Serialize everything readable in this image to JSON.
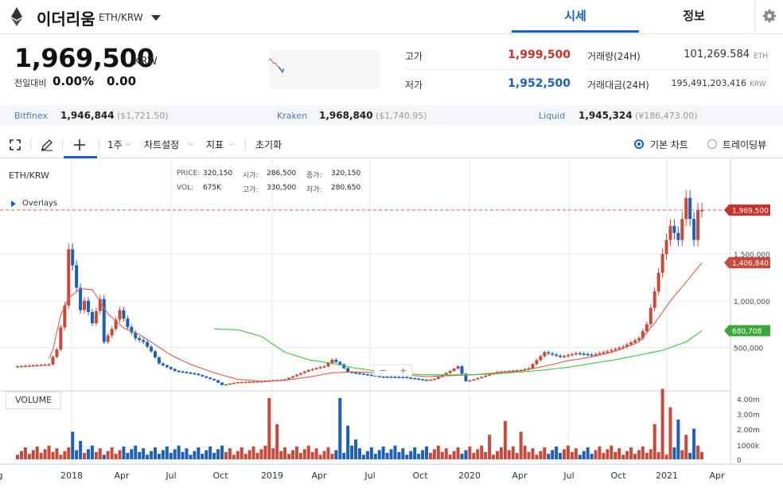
{
  "header": {
    "coin_name": "이더리움",
    "pair": "ETH/KRW",
    "tabs": [
      {
        "label": "시세"
      },
      {
        "label": "정보"
      }
    ]
  },
  "summary": {
    "price": "1,969,500",
    "unit": "KRW",
    "change_label": "전일대비",
    "change_pct": "0.00%",
    "change_amt": "0.00",
    "high_label": "고가",
    "high": "1,999,500",
    "low_label": "저가",
    "low": "1,952,500",
    "volume_label": "거래량(24H)",
    "volume": "101,269.584",
    "volume_unit": "ETH",
    "amount_label": "거래대금(24H)",
    "amount": "195,491,203,416",
    "amount_unit": "KRW"
  },
  "exchanges": [
    {
      "name": "Bitfinex",
      "price": "1,946,844",
      "sub": "($1,721.50)"
    },
    {
      "name": "Kraken",
      "price": "1,968,840",
      "sub": "($1,740.95)"
    },
    {
      "name": "Liquid",
      "price": "1,945,324",
      "sub": "(¥186,473.00)"
    }
  ],
  "toolbar": {
    "interval": "1주",
    "settings": "차트설정",
    "indicators": "지표",
    "reset": "초기화",
    "view_basic": "기본 차트",
    "view_tv": "트레이딩뷰"
  },
  "chart_info": {
    "symbol": "ETH/KRW",
    "overlays": "Overlays",
    "price_label": "PRICE:",
    "price": "320,150",
    "open_label": "시가:",
    "open": "286,500",
    "close_label": "종가:",
    "close": "320,150",
    "vol_label": "VOL:",
    "vol": "675K",
    "high_label": "고가:",
    "high": "330,500",
    "low_label": "저가:",
    "low": "280,650",
    "volume_title": "VOLUME"
  },
  "colors": {
    "up": "#c84a3d",
    "down": "#1e5fb8",
    "ma_short": "#e05a4a",
    "ma_long": "#3ec23e",
    "accent": "#1261c4"
  },
  "chart_data": {
    "type": "candlestick",
    "interval": "weekly",
    "price_ticks": [
      500000,
      1000000,
      1500000
    ],
    "price_tick_labels": [
      "500,000",
      "1,000,000",
      "1,500,000"
    ],
    "volume_ticks": [
      "0",
      "1000k",
      "2.00m",
      "3.00m",
      "4.00m"
    ],
    "x_labels": [
      "g",
      "2018",
      "Apr",
      "Jul",
      "Oct",
      "2019",
      "Apr",
      "Jul",
      "Oct",
      "2020",
      "Apr",
      "Jul",
      "Oct",
      "2021",
      "Apr"
    ],
    "badges": [
      {
        "label": "1,969,500",
        "value": 1969500,
        "series": "price"
      },
      {
        "label": "1,406,840",
        "value": 1406840,
        "series": "ma_short"
      },
      {
        "label": "680,708",
        "value": 680708,
        "series": "ma_long"
      }
    ],
    "close_line": 1969500,
    "price_anchors": [
      [
        0,
        300000
      ],
      [
        8,
        320000
      ],
      [
        10,
        480000
      ],
      [
        12,
        950000
      ],
      [
        13,
        1550000
      ],
      [
        14,
        1380000
      ],
      [
        16,
        900000
      ],
      [
        17,
        1000000
      ],
      [
        19,
        760000
      ],
      [
        21,
        1020000
      ],
      [
        22,
        560000
      ],
      [
        24,
        700000
      ],
      [
        26,
        900000
      ],
      [
        28,
        720000
      ],
      [
        30,
        600000
      ],
      [
        32,
        560000
      ],
      [
        34,
        460000
      ],
      [
        36,
        330000
      ],
      [
        40,
        250000
      ],
      [
        45,
        220000
      ],
      [
        50,
        150000
      ],
      [
        52,
        100000
      ],
      [
        56,
        130000
      ],
      [
        62,
        140000
      ],
      [
        68,
        160000
      ],
      [
        74,
        260000
      ],
      [
        78,
        300000
      ],
      [
        80,
        370000
      ],
      [
        82,
        320000
      ],
      [
        84,
        240000
      ],
      [
        92,
        190000
      ],
      [
        98,
        185000
      ],
      [
        104,
        150000
      ],
      [
        106,
        165000
      ],
      [
        110,
        250000
      ],
      [
        112,
        300000
      ],
      [
        114,
        140000
      ],
      [
        116,
        160000
      ],
      [
        122,
        240000
      ],
      [
        128,
        260000
      ],
      [
        130,
        280000
      ],
      [
        134,
        450000
      ],
      [
        138,
        400000
      ],
      [
        142,
        440000
      ],
      [
        146,
        420000
      ],
      [
        150,
        460000
      ],
      [
        154,
        510000
      ],
      [
        158,
        600000
      ],
      [
        160,
        750000
      ],
      [
        162,
        1100000
      ],
      [
        164,
        1500000
      ],
      [
        166,
        1800000
      ],
      [
        168,
        1650000
      ],
      [
        170,
        2100000
      ],
      [
        172,
        1650000
      ],
      [
        173,
        1969500
      ]
    ],
    "ma_short": [
      [
        8,
        380000
      ],
      [
        9,
        480000
      ],
      [
        11,
        850000
      ],
      [
        13,
        1030000
      ],
      [
        16,
        1130000
      ],
      [
        19,
        1120000
      ],
      [
        23,
        860000
      ],
      [
        27,
        710000
      ],
      [
        31,
        640000
      ],
      [
        35,
        530000
      ],
      [
        39,
        420000
      ],
      [
        44,
        320000
      ],
      [
        50,
        230000
      ],
      [
        56,
        160000
      ],
      [
        62,
        140000
      ],
      [
        68,
        150000
      ],
      [
        74,
        185000
      ],
      [
        80,
        230000
      ],
      [
        86,
        240000
      ],
      [
        92,
        230000
      ],
      [
        98,
        210000
      ],
      [
        104,
        190000
      ],
      [
        110,
        200000
      ],
      [
        116,
        210000
      ],
      [
        122,
        230000
      ],
      [
        128,
        250000
      ],
      [
        134,
        300000
      ],
      [
        140,
        360000
      ],
      [
        146,
        400000
      ],
      [
        152,
        460000
      ],
      [
        158,
        560000
      ],
      [
        162,
        760000
      ],
      [
        166,
        1000000
      ],
      [
        170,
        1200000
      ],
      [
        174,
        1406840
      ]
    ],
    "ma_long": [
      [
        50,
        700000
      ],
      [
        56,
        690000
      ],
      [
        62,
        620000
      ],
      [
        68,
        450000
      ],
      [
        74,
        370000
      ],
      [
        80,
        330000
      ],
      [
        86,
        280000
      ],
      [
        92,
        245000
      ],
      [
        98,
        220000
      ],
      [
        104,
        210000
      ],
      [
        110,
        208000
      ],
      [
        116,
        210000
      ],
      [
        122,
        220000
      ],
      [
        128,
        240000
      ],
      [
        134,
        260000
      ],
      [
        140,
        290000
      ],
      [
        146,
        330000
      ],
      [
        152,
        370000
      ],
      [
        158,
        420000
      ],
      [
        164,
        470000
      ],
      [
        170,
        560000
      ],
      [
        174,
        680708
      ]
    ],
    "volume_spikes": [
      [
        14,
        1800000
      ],
      [
        16,
        1200000
      ],
      [
        64,
        4000000
      ],
      [
        66,
        2300000
      ],
      [
        82,
        4000000
      ],
      [
        84,
        2200000
      ],
      [
        86,
        1300000
      ],
      [
        120,
        1600000
      ],
      [
        124,
        2500000
      ],
      [
        128,
        1800000
      ],
      [
        162,
        2300000
      ],
      [
        164,
        4600000
      ],
      [
        166,
        3400000
      ],
      [
        168,
        2600000
      ],
      [
        170,
        1600000
      ],
      [
        172,
        2000000
      ]
    ]
  }
}
